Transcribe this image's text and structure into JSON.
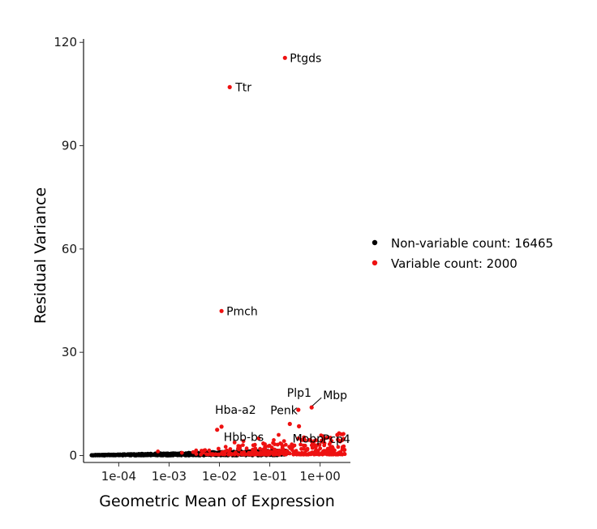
{
  "chart_data": {
    "type": "scatter",
    "xlabel": "Geometric Mean of Expression",
    "ylabel": "Residual Variance",
    "x_scale": "log10",
    "xlim": [
      2e-05,
      4
    ],
    "ylim": [
      -2,
      121
    ],
    "x_ticks": [
      {
        "value": 0.0001,
        "label": "1e-04"
      },
      {
        "value": 0.001,
        "label": "1e-03"
      },
      {
        "value": 0.01,
        "label": "1e-02"
      },
      {
        "value": 0.1,
        "label": "1e-01"
      },
      {
        "value": 1,
        "label": "1e+00"
      }
    ],
    "y_ticks": [
      {
        "value": 0,
        "label": "0"
      },
      {
        "value": 30,
        "label": "30"
      },
      {
        "value": 60,
        "label": "60"
      },
      {
        "value": 90,
        "label": "90"
      },
      {
        "value": 120,
        "label": "120"
      }
    ],
    "grid": false,
    "legend_position": "right",
    "series": [
      {
        "name": "Non-variable count: 16465",
        "color": "#000000"
      },
      {
        "name": "Variable count: 2000",
        "color": "#ee1111"
      }
    ],
    "labeled_points": [
      {
        "label": "Ptgds",
        "x": 0.2,
        "y": 115.5
      },
      {
        "label": "Ttr",
        "x": 0.016,
        "y": 107
      },
      {
        "label": "Pmch",
        "x": 0.011,
        "y": 42
      },
      {
        "label": "Mbp",
        "x": 0.68,
        "y": 14
      },
      {
        "label": "Plp1",
        "x": 0.37,
        "y": 13.3
      },
      {
        "label": "Penk",
        "x": 0.25,
        "y": 9.2
      },
      {
        "label": "Mobp",
        "x": 0.38,
        "y": 8.5
      },
      {
        "label": "Hba-a2",
        "x": 0.011,
        "y": 8.4
      },
      {
        "label": "Hbb-bs",
        "x": 0.009,
        "y": 7.5
      },
      {
        "label": "Pcp4",
        "x": 2.2,
        "y": 6
      }
    ]
  }
}
